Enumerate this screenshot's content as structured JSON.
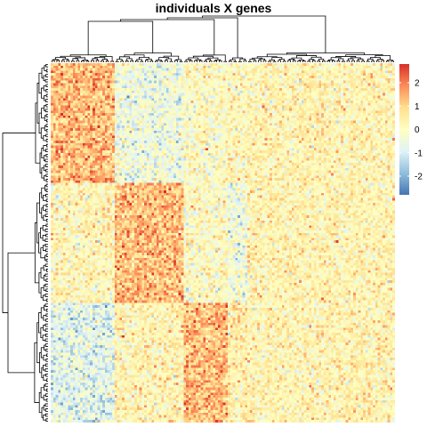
{
  "chart_data": {
    "type": "heatmap",
    "title": "individuals X genes",
    "xlabel": "",
    "ylabel": "",
    "row_dendrogram": true,
    "column_dendrogram": true,
    "color_scale": {
      "range": [
        -2.8,
        2.8
      ],
      "ticks": [
        2,
        1,
        0,
        -1,
        -2
      ],
      "tick_labels": [
        "2",
        "1",
        "0",
        "-1",
        "-2"
      ],
      "colors": [
        "#4575B4",
        "#91BFDB",
        "#E0F3F8",
        "#FFFFBF",
        "#FEE090",
        "#FC8D59",
        "#D73027"
      ],
      "legend_position": "right"
    },
    "row_groups": [
      {
        "rows": 48,
        "block_means": [
          1.3,
          -0.5,
          0.0,
          0.2,
          0.3
        ]
      },
      {
        "rows": 48,
        "block_means": [
          0.2,
          1.3,
          0.0,
          -0.4,
          0.3
        ]
      },
      {
        "rows": 48,
        "block_means": [
          -0.8,
          0.3,
          1.3,
          0.4,
          0.3
        ]
      }
    ],
    "column_blocks": [
      {
        "name": "",
        "columns": 26
      },
      {
        "name": "",
        "columns": 28
      },
      {
        "name": "",
        "columns": 18
      },
      {
        "name": "",
        "columns": 8
      },
      {
        "name": "",
        "columns": 60
      }
    ]
  }
}
